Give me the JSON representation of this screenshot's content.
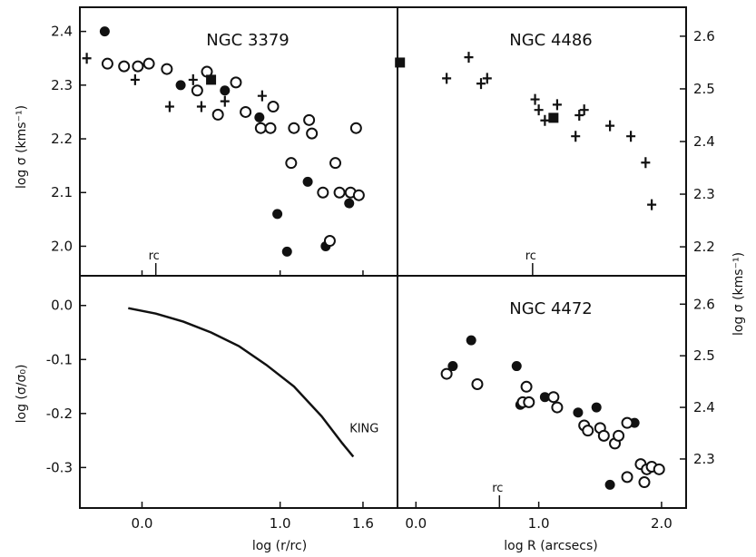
{
  "chart_data": [
    {
      "panel": "top-left",
      "type": "scatter",
      "title": "NGC 3379",
      "xlim": [
        -0.45,
        1.85
      ],
      "ylim": [
        1.945,
        2.445
      ],
      "xticks": [
        0.0,
        1.0,
        1.6
      ],
      "xtick_labels": [
        "0.0",
        "1.0",
        "1.6"
      ],
      "yticks": [
        2.0,
        2.1,
        2.2,
        2.3,
        2.4
      ],
      "ytick_labels": [
        "2.0",
        "2.1",
        "2.2",
        "2.3",
        "2.4"
      ],
      "ylabel": "log σ (kms⁻¹)",
      "rc_label": "rc",
      "rc_x": 0.1,
      "series": [
        {
          "marker": "filled-circle",
          "points": [
            [
              -0.27,
              2.4
            ],
            [
              0.28,
              2.3
            ],
            [
              0.6,
              2.29
            ],
            [
              0.85,
              2.24
            ],
            [
              0.98,
              2.06
            ],
            [
              1.05,
              1.99
            ],
            [
              1.2,
              2.12
            ],
            [
              1.33,
              2.0
            ],
            [
              1.5,
              2.08
            ]
          ]
        },
        {
          "marker": "open-circle",
          "points": [
            [
              -0.25,
              2.34
            ],
            [
              -0.13,
              2.335
            ],
            [
              -0.03,
              2.335
            ],
            [
              0.05,
              2.34
            ],
            [
              0.18,
              2.33
            ],
            [
              0.4,
              2.29
            ],
            [
              0.47,
              2.325
            ],
            [
              0.55,
              2.245
            ],
            [
              0.68,
              2.305
            ],
            [
              0.75,
              2.25
            ],
            [
              0.86,
              2.22
            ],
            [
              0.93,
              2.22
            ],
            [
              0.95,
              2.26
            ],
            [
              1.08,
              2.155
            ],
            [
              1.1,
              2.22
            ],
            [
              1.21,
              2.235
            ],
            [
              1.23,
              2.21
            ],
            [
              1.31,
              2.1
            ],
            [
              1.36,
              2.01
            ],
            [
              1.4,
              2.155
            ],
            [
              1.43,
              2.1
            ],
            [
              1.51,
              2.1
            ],
            [
              1.55,
              2.22
            ],
            [
              1.57,
              2.095
            ]
          ]
        },
        {
          "marker": "plus",
          "points": [
            [
              -0.4,
              2.35
            ],
            [
              -0.05,
              2.31
            ],
            [
              0.2,
              2.26
            ],
            [
              0.37,
              2.31
            ],
            [
              0.43,
              2.26
            ],
            [
              0.6,
              2.27
            ],
            [
              0.87,
              2.28
            ]
          ]
        },
        {
          "marker": "filled-square",
          "points": [
            [
              0.5,
              2.31
            ]
          ]
        }
      ]
    },
    {
      "panel": "top-right",
      "type": "scatter",
      "title": "NGC 4486",
      "xlim": [
        -0.15,
        2.2
      ],
      "ylim": [
        2.145,
        2.655
      ],
      "yticks": [
        2.2,
        2.3,
        2.4,
        2.5,
        2.6
      ],
      "ytick_labels": [
        "2.2",
        "2.3",
        "2.4",
        "2.5",
        "2.6"
      ],
      "ylabel": "log σ (kms⁻¹)",
      "rc_label": "rc",
      "rc_x": 0.95,
      "series": [
        {
          "marker": "plus",
          "points": [
            [
              0.25,
              2.52
            ],
            [
              0.43,
              2.56
            ],
            [
              0.53,
              2.51
            ],
            [
              0.58,
              2.52
            ],
            [
              0.97,
              2.48
            ],
            [
              1.0,
              2.46
            ],
            [
              1.05,
              2.44
            ],
            [
              1.15,
              2.47
            ],
            [
              1.3,
              2.41
            ],
            [
              1.33,
              2.45
            ],
            [
              1.37,
              2.46
            ],
            [
              1.58,
              2.43
            ],
            [
              1.75,
              2.41
            ],
            [
              1.87,
              2.36
            ],
            [
              1.92,
              2.28
            ]
          ]
        },
        {
          "marker": "filled-square",
          "points": [
            [
              -0.13,
              2.55
            ],
            [
              1.12,
              2.445
            ]
          ]
        }
      ]
    },
    {
      "panel": "bottom-left",
      "type": "line",
      "xlim": [
        -0.45,
        1.85
      ],
      "ylim": [
        -0.375,
        0.055
      ],
      "yticks": [
        0.0,
        -0.1,
        -0.2,
        -0.3
      ],
      "ytick_labels": [
        "0.0",
        "-0.1",
        "-0.2",
        "-0.3"
      ],
      "xticks": [
        0.0,
        1.0,
        1.6
      ],
      "xtick_labels": [
        "0.0",
        "1.0",
        "1.6"
      ],
      "xlabel": "log (r/rc)",
      "ylabel": "log (σ/σ₀)",
      "annotation": "KING",
      "series": [
        {
          "points": [
            [
              -0.1,
              -0.005
            ],
            [
              0.1,
              -0.015
            ],
            [
              0.3,
              -0.03
            ],
            [
              0.5,
              -0.05
            ],
            [
              0.7,
              -0.075
            ],
            [
              0.9,
              -0.11
            ],
            [
              1.1,
              -0.15
            ],
            [
              1.3,
              -0.205
            ],
            [
              1.45,
              -0.255
            ],
            [
              1.53,
              -0.28
            ]
          ]
        }
      ]
    },
    {
      "panel": "bottom-right",
      "type": "scatter",
      "title": "NGC 4472",
      "xlim": [
        -0.15,
        2.2
      ],
      "ylim": [
        2.205,
        2.655
      ],
      "xticks": [
        0.0,
        1.0,
        2.0
      ],
      "xtick_labels": [
        "0.0",
        "1.0",
        "2.0"
      ],
      "yticks": [
        2.3,
        2.4,
        2.5,
        2.6
      ],
      "ytick_labels": [
        "2.3",
        "2.4",
        "2.5",
        "2.6"
      ],
      "xlabel": "log R (arcsecs)",
      "rc_label": "rc",
      "rc_x": 0.68,
      "series": [
        {
          "marker": "filled-circle",
          "points": [
            [
              0.3,
              2.48
            ],
            [
              0.45,
              2.53
            ],
            [
              0.82,
              2.48
            ],
            [
              0.85,
              2.405
            ],
            [
              1.05,
              2.42
            ],
            [
              1.32,
              2.39
            ],
            [
              1.47,
              2.4
            ],
            [
              1.58,
              2.25
            ],
            [
              1.78,
              2.37
            ]
          ]
        },
        {
          "marker": "open-circle",
          "points": [
            [
              0.25,
              2.465
            ],
            [
              0.5,
              2.445
            ],
            [
              0.87,
              2.41
            ],
            [
              0.9,
              2.44
            ],
            [
              0.92,
              2.41
            ],
            [
              1.12,
              2.42
            ],
            [
              1.15,
              2.4
            ],
            [
              1.37,
              2.365
            ],
            [
              1.4,
              2.355
            ],
            [
              1.5,
              2.36
            ],
            [
              1.53,
              2.345
            ],
            [
              1.62,
              2.33
            ],
            [
              1.65,
              2.345
            ],
            [
              1.72,
              2.265
            ],
            [
              1.72,
              2.37
            ],
            [
              1.83,
              2.29
            ],
            [
              1.88,
              2.28
            ],
            [
              1.92,
              2.285
            ],
            [
              1.98,
              2.28
            ],
            [
              1.86,
              2.255
            ]
          ]
        }
      ]
    }
  ]
}
